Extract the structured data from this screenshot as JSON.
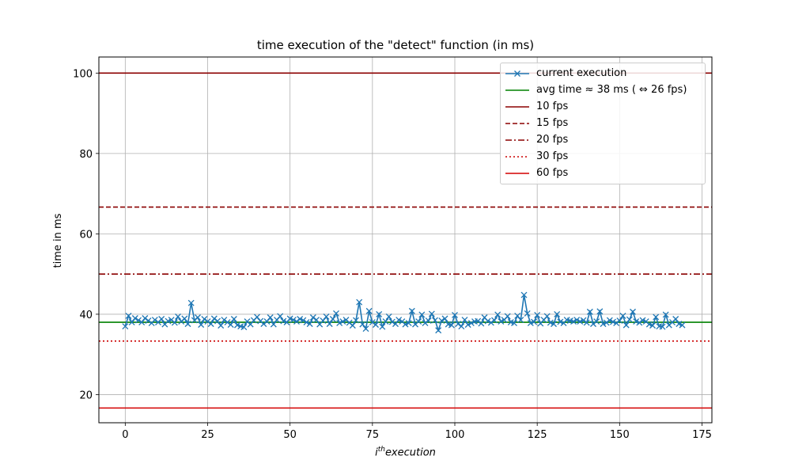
{
  "chart_data": {
    "type": "line",
    "title": "time execution of the \"detect\" function (in ms)",
    "xlabel": "execution",
    "xlabel_sup": "i",
    "xlabel_prefix_sup": "th",
    "ylabel": "time in ms",
    "xlim": [
      -8,
      178
    ],
    "ylim": [
      13,
      104
    ],
    "xticks": [
      "0",
      "25",
      "50",
      "75",
      "100",
      "125",
      "150",
      "175"
    ],
    "xtick_values": [
      0,
      25,
      50,
      75,
      100,
      125,
      150,
      175
    ],
    "yticks": [
      "20",
      "40",
      "60",
      "80",
      "100"
    ],
    "ytick_values": [
      20,
      40,
      60,
      80,
      100
    ],
    "grid": true,
    "legend_position": "top-right",
    "series": [
      {
        "name": "current execution",
        "color": "#1f77b4",
        "marker": "x",
        "x_start": 0,
        "values": [
          37.0,
          39.6,
          38.0,
          39.0,
          38.5,
          38.0,
          39.0,
          38.4,
          37.8,
          38.6,
          38.0,
          38.8,
          37.5,
          38.3,
          38.6,
          37.9,
          39.4,
          38.2,
          38.9,
          37.6,
          42.8,
          38.5,
          39.2,
          37.4,
          38.8,
          38.2,
          37.6,
          38.9,
          38.3,
          37.2,
          38.6,
          38.0,
          37.4,
          38.8,
          37.3,
          37.0,
          36.8,
          38.2,
          37.5,
          38.5,
          39.3,
          38.3,
          37.6,
          38.2,
          39.2,
          37.5,
          38.6,
          39.5,
          38.3,
          38.0,
          38.9,
          38.6,
          38.2,
          38.8,
          38.5,
          38.0,
          37.6,
          39.2,
          38.6,
          37.5,
          38.4,
          39.4,
          37.6,
          38.8,
          40.2,
          37.8,
          38.2,
          38.6,
          37.9,
          37.2,
          38.5,
          43.0,
          37.5,
          36.4,
          40.8,
          38.0,
          37.4,
          40.0,
          36.9,
          38.2,
          39.4,
          38.1,
          37.6,
          38.6,
          38.2,
          37.5,
          37.8,
          40.8,
          37.5,
          38.2,
          39.9,
          37.8,
          38.4,
          40.1,
          38.5,
          36.0,
          38.4,
          38.9,
          37.5,
          37.3,
          39.8,
          37.6,
          37.0,
          38.6,
          37.4,
          37.8,
          38.2,
          38.3,
          37.7,
          39.2,
          38.3,
          37.9,
          38.5,
          39.9,
          38.2,
          38.6,
          39.5,
          38.0,
          37.8,
          39.6,
          38.6,
          44.8,
          40.2,
          37.8,
          38.1,
          39.8,
          37.7,
          38.6,
          39.5,
          37.9,
          37.6,
          40.0,
          38.1,
          37.8,
          38.6,
          38.4,
          38.2,
          38.6,
          38.2,
          38.5,
          37.9,
          40.6,
          37.6,
          38.2,
          40.7,
          37.6,
          37.9,
          38.5,
          38.1,
          37.8,
          38.4,
          39.6,
          37.3,
          38.7,
          40.6,
          38.2,
          37.9,
          38.5,
          38.2,
          37.5,
          37.2,
          39.3,
          37.0,
          36.9,
          39.9,
          37.3,
          38.0,
          38.8,
          37.6,
          37.3
        ],
        "legend_label": "current execution"
      },
      {
        "name": "avg",
        "color": "#008000",
        "value": 38,
        "style": "solid",
        "legend_label": "avg time  ≈  38 ms ( ⇔  26 fps)"
      },
      {
        "name": "10 fps",
        "color": "#8b0000",
        "value": 100,
        "style": "solid",
        "legend_label": "10 fps"
      },
      {
        "name": "15 fps",
        "color": "#8b0000",
        "value": 66.67,
        "style": "dashed",
        "legend_label": "15 fps"
      },
      {
        "name": "20 fps",
        "color": "#8b0000",
        "value": 50,
        "style": "dashdot",
        "legend_label": "20 fps"
      },
      {
        "name": "30 fps",
        "color": "#cc0000",
        "value": 33.33,
        "style": "dotted",
        "legend_label": "30 fps"
      },
      {
        "name": "60 fps",
        "color": "#d40000",
        "value": 16.67,
        "style": "solid",
        "legend_label": "60 fps"
      }
    ]
  }
}
